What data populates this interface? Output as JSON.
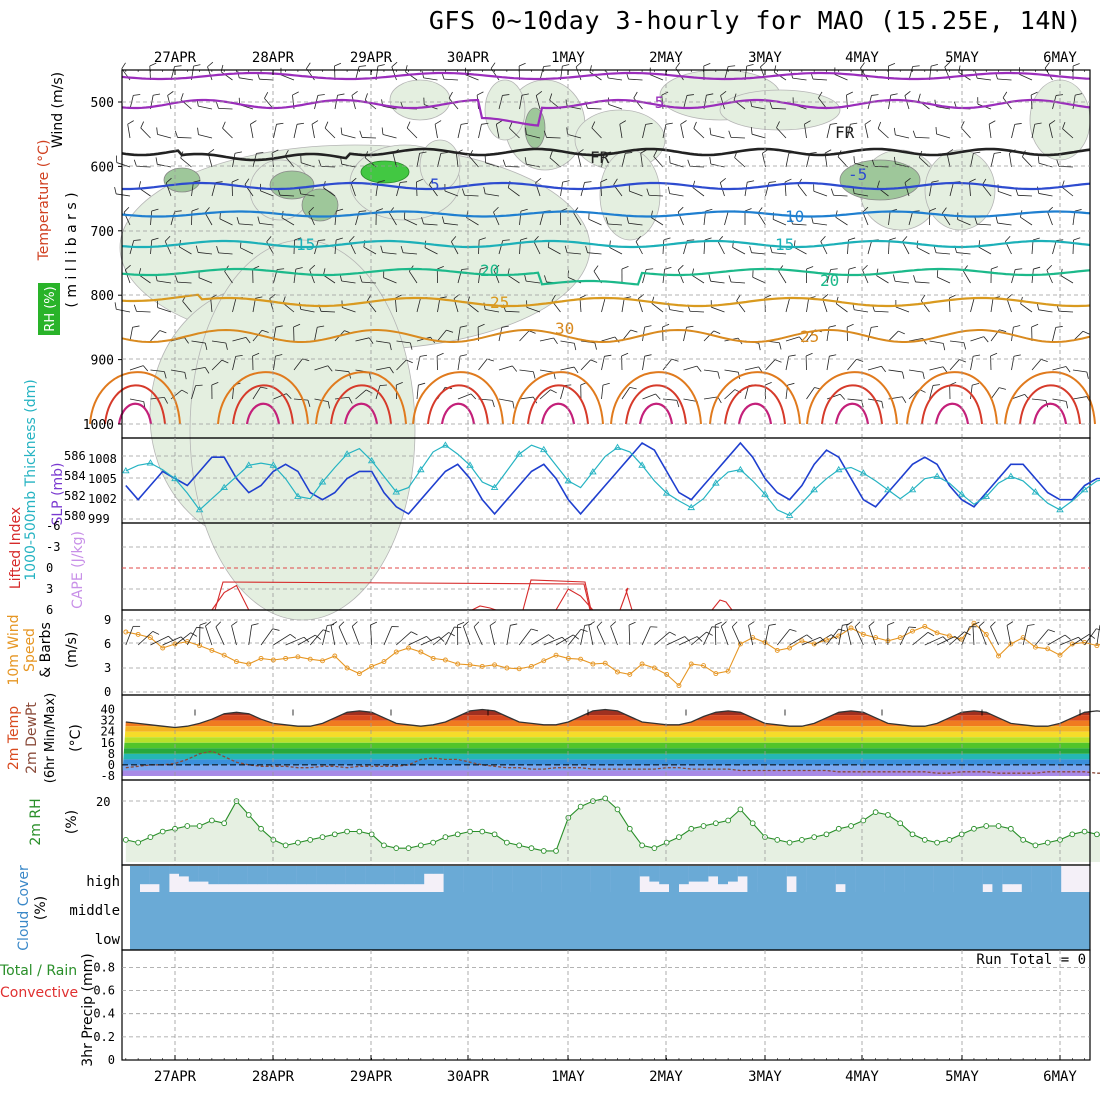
{
  "title": "GFS 0~10day 3-hourly for MAO (15.25E, 14N)",
  "dates": [
    "27APR",
    "28APR",
    "29APR",
    "30APR",
    "1MAY",
    "2MAY",
    "3MAY",
    "4MAY",
    "5MAY",
    "6MAY"
  ],
  "colors": {
    "grid": "#9a9a9a",
    "temp_line": "#2f2f2f",
    "slp": "#1f3fcf",
    "thick": "#25b3c2",
    "wind": "#e69623",
    "li": "#d62a2a",
    "rh": "#2a8f2a",
    "rh_fill": "#e6f0e2",
    "cloud": "#6aaad6",
    "cloud_bg": "#f4f0f8"
  },
  "panels": {
    "upper": {
      "ylabel": "(millibars)",
      "labels": [
        {
          "text": "Wind (m/s)",
          "color": "#000000"
        },
        {
          "text": "Temperature (°C)",
          "color": "#d04020"
        },
        {
          "text": "RH (%)",
          "color": "#ffffff",
          "bg": "#29b329"
        }
      ],
      "ticks": [
        "500",
        "600",
        "700",
        "800",
        "900",
        "1000"
      ],
      "contour_labels": [
        "5",
        "-5",
        "FR",
        "FR",
        "5",
        "-5",
        "10",
        "15",
        "15",
        "20",
        "20",
        "25",
        "25",
        "30",
        "30",
        "30",
        "30",
        "30",
        "10"
      ]
    },
    "slp": {
      "left_label": "1000-500mb Thickness (dm)",
      "right_label": "SLP (mb)",
      "left_ticks": [
        "586",
        "584",
        "582",
        "580"
      ],
      "right_ticks": [
        "1008",
        "1005",
        "1002",
        "999"
      ]
    },
    "li": {
      "left_label": "Lifted Index",
      "right_label": "CAPE (J/kg)",
      "ticks": [
        "-6",
        "-3",
        "0",
        "3",
        "6"
      ]
    },
    "wind": {
      "left_label": "10m Wind Speed & Barbs",
      "right_label": "(m/s)",
      "ticks": [
        "9",
        "6",
        "3",
        "0"
      ]
    },
    "temp": {
      "left_label": "2m Temp 2m DewPt (6hr Min/Max)",
      "right_label": "(°C)",
      "ticks": [
        "40",
        "32",
        "24",
        "16",
        "8",
        "0",
        "-8"
      ]
    },
    "rh": {
      "left_label": "2m RH",
      "right_label": "(%)",
      "ticks": [
        "20"
      ]
    },
    "cloud": {
      "left_label": "Cloud Cover",
      "right_label": "(%)",
      "levels": [
        "high",
        "middle",
        "low"
      ]
    },
    "precip": {
      "left_label": "Total / Rain",
      "left_label2": "Convective",
      "right_label": "3hr Precip (mm)",
      "ticks": [
        "0.8",
        "0.6",
        "0.4",
        "0.2",
        "0"
      ],
      "note": "Run Total = 0"
    }
  },
  "chart_data": [
    {
      "type": "line",
      "name": "SLP",
      "x_unit": "3-hourly from 26APR 12Z",
      "series": [
        {
          "name": "SLP (mb)",
          "values": [
            1004,
            1002,
            1004,
            1006,
            1005,
            1004,
            1006,
            1008,
            1008,
            1005,
            1003,
            1004,
            1006,
            1007,
            1006,
            1003,
            1002,
            1003,
            1005,
            1006,
            1006,
            1003,
            1001,
            1000,
            1002,
            1004,
            1006,
            1007,
            1005,
            1002,
            1000,
            1002,
            1004,
            1006,
            1007,
            1005,
            1002,
            1000,
            1002,
            1004,
            1006,
            1008,
            1010,
            1009,
            1006,
            1003,
            1002,
            1004,
            1006,
            1008,
            1010,
            1008,
            1005,
            1003,
            1002,
            1004,
            1007,
            1009,
            1008,
            1005,
            1002,
            1001,
            1003,
            1005,
            1007,
            1008,
            1007,
            1004,
            1002,
            1001,
            1003,
            1005,
            1007,
            1007,
            1005,
            1003,
            1002,
            1002,
            1004,
            1005,
            1005,
            1004,
            1003,
            1002,
            1002,
            1004,
            1005,
            1005,
            1004,
            1003,
            1002,
            1003,
            1005
          ]
        },
        {
          "name": "Thickness (dm)",
          "values": [
            584.5,
            585.0,
            585.2,
            584.6,
            583.8,
            582.5,
            581.0,
            582.0,
            583.0,
            584.0,
            585.0,
            585.2,
            585.0,
            583.8,
            582.2,
            582.0,
            583.5,
            584.8,
            586.0,
            586.5,
            585.4,
            584.0,
            582.6,
            583.0,
            584.6,
            586.2,
            586.8,
            586.0,
            585.0,
            583.5,
            583.0,
            584.5,
            586.0,
            586.8,
            586.4,
            585.0,
            583.6,
            583.0,
            584.4,
            585.8,
            586.6,
            586.2,
            585.0,
            583.6,
            582.5,
            581.8,
            581.2,
            582.0,
            583.4,
            584.4,
            584.6,
            583.6,
            582.4,
            581.0,
            580.5,
            581.6,
            582.8,
            583.8,
            584.6,
            584.8,
            584.3,
            583.6,
            582.8,
            582.0,
            582.8,
            583.8,
            584.0,
            583.4,
            582.4,
            581.5,
            582.2,
            583.4,
            584.0,
            583.6,
            582.6,
            581.6,
            581.0,
            581.8,
            582.8,
            583.6,
            583.8,
            583.4,
            582.6,
            581.4,
            580.6,
            580.2,
            581.8,
            583.0,
            584.0,
            584.6,
            583.2,
            582.0,
            582.4
          ]
        }
      ],
      "ylim_left": [
        580,
        587
      ],
      "ylim_right": [
        999,
        1010
      ]
    },
    {
      "type": "line",
      "name": "Lifted Index",
      "values": [
        null,
        null,
        null,
        null,
        null,
        null,
        null,
        6,
        3.5,
        2.5,
        6,
        null,
        null,
        null,
        null,
        null,
        null,
        null,
        null,
        null,
        null,
        null,
        null,
        null,
        null,
        null,
        null,
        null,
        null,
        null,
        null,
        null,
        null,
        null,
        null,
        6,
        3,
        4,
        6,
        null,
        null,
        null,
        null,
        null,
        null,
        null,
        null,
        null,
        null,
        null,
        null,
        null,
        null,
        null,
        null,
        null,
        null,
        null,
        null,
        null,
        null,
        null,
        null,
        null,
        null,
        null,
        null,
        null,
        null,
        null,
        null,
        null,
        null,
        null,
        null,
        null,
        null,
        null,
        null,
        null,
        null,
        null,
        null,
        null,
        null,
        null,
        null,
        null,
        null,
        null,
        null,
        null,
        null
      ],
      "ylim": [
        6,
        -6
      ]
    },
    {
      "type": "line",
      "name": "10m Wind Speed",
      "values": [
        7.5,
        7.2,
        6.8,
        5.5,
        6.0,
        6.3,
        5.8,
        5.2,
        4.6,
        3.8,
        3.5,
        4.2,
        4.0,
        4.2,
        4.4,
        4.1,
        3.9,
        4.5,
        3.0,
        2.3,
        3.2,
        3.8,
        5.0,
        5.5,
        5.0,
        4.2,
        4.0,
        3.5,
        3.4,
        3.2,
        3.4,
        3.0,
        2.9,
        3.2,
        3.9,
        4.6,
        4.2,
        4.1,
        3.5,
        3.6,
        2.5,
        2.2,
        3.5,
        3.0,
        2.2,
        0.8,
        3.5,
        3.3,
        2.3,
        2.6,
        6.0,
        6.8,
        6.2,
        5.2,
        5.5,
        6.4,
        6.0,
        6.5,
        7.0,
        8.0,
        7.2,
        6.8,
        6.4,
        6.8,
        7.6,
        8.2,
        7.4,
        7.0,
        6.6,
        8.6,
        7.2,
        4.5,
        6.0,
        6.8,
        5.6,
        5.4,
        4.6,
        6.0,
        6.2,
        5.8,
        6.4,
        6.8,
        5.2,
        5.4,
        4.6,
        5.4,
        3.0,
        2.6,
        3.5,
        2.8,
        3.2,
        4.4,
        5.9,
        6.5,
        6.0
      ]
    },
    {
      "type": "area",
      "name": "2m Temp",
      "values": [
        31,
        30,
        29,
        28,
        27,
        28,
        30,
        33,
        37,
        38,
        37,
        33,
        30,
        29,
        28,
        28,
        30,
        34,
        38,
        39,
        38,
        34,
        30,
        29,
        28,
        29,
        31,
        35,
        39,
        40,
        39,
        35,
        31,
        30,
        29,
        29,
        31,
        35,
        39,
        40,
        39,
        35,
        31,
        30,
        29,
        29,
        31,
        35,
        38,
        39,
        38,
        34,
        30,
        29,
        28,
        28,
        30,
        34,
        38,
        39,
        38,
        34,
        30,
        29,
        28,
        28,
        30,
        34,
        38,
        39,
        38,
        34,
        30,
        29,
        28,
        28,
        30,
        34,
        38,
        39,
        38,
        34,
        30,
        29,
        28,
        28,
        30,
        34,
        38,
        39,
        38,
        34,
        30,
        29,
        28
      ],
      "dewpoint": [
        -2,
        -1,
        0,
        0,
        1,
        4,
        8,
        10,
        6,
        2,
        0,
        -1,
        -1,
        -1,
        -2,
        -2,
        -1,
        -1,
        -2,
        -1,
        -1,
        -1,
        -1,
        0,
        4,
        5,
        4,
        4,
        2,
        0,
        -1,
        -2,
        -2,
        -3,
        -3,
        -2,
        -2,
        -2,
        -3,
        -3,
        -3,
        -3,
        -3,
        -3,
        -2,
        -2,
        -3,
        -3,
        -3,
        -3,
        -4,
        -4,
        -4,
        -4,
        -4,
        -4,
        -4,
        -4,
        -5,
        -5,
        -5,
        -5,
        -5,
        -5,
        -5,
        -5,
        -6,
        -6,
        -5,
        -5,
        -5,
        -6,
        -6,
        -6,
        -6,
        -5,
        -5,
        -5,
        -5,
        -6,
        -6,
        -6,
        -5,
        -5,
        -5,
        -5,
        -5,
        -5,
        -5,
        -5,
        -5,
        -5,
        -5,
        -5,
        -5
      ],
      "ylim": [
        -8,
        44
      ]
    },
    {
      "type": "area",
      "name": "2m RH",
      "values": [
        8,
        7,
        9,
        11,
        12,
        13,
        13,
        15,
        14,
        22,
        17,
        12,
        8,
        6,
        7,
        8,
        9,
        10,
        11,
        11,
        10,
        6,
        5,
        5,
        6,
        7,
        9,
        10,
        11,
        11,
        10,
        7,
        6,
        5,
        4,
        4,
        16,
        20,
        22,
        23,
        19,
        12,
        6,
        5,
        7,
        9,
        12,
        13,
        14,
        15,
        19,
        14,
        9,
        8,
        7,
        8,
        9,
        10,
        12,
        13,
        15,
        18,
        17,
        14,
        10,
        8,
        7,
        8,
        10,
        12,
        13,
        13,
        12,
        8,
        6,
        7,
        8,
        10,
        11,
        10,
        9,
        7,
        6,
        7,
        8,
        9,
        10,
        10,
        8,
        6,
        5,
        6,
        8,
        9,
        10,
        12,
        8
      ],
      "ylim": [
        0,
        26
      ]
    },
    {
      "type": "bar",
      "name": "Cloud Cover",
      "high": [
        100,
        70,
        70,
        100,
        30,
        40,
        60,
        60,
        70,
        70,
        70,
        70,
        70,
        70,
        70,
        70,
        70,
        70,
        70,
        70,
        70,
        70,
        70,
        70,
        70,
        70,
        70,
        70,
        70,
        70,
        30,
        30,
        100,
        100,
        100,
        100,
        100,
        100,
        100,
        100,
        100,
        100,
        100,
        100,
        100,
        100,
        100,
        100,
        100,
        100,
        100,
        100,
        40,
        60,
        70,
        100,
        70,
        60,
        60,
        40,
        70,
        60,
        40,
        100,
        100,
        100,
        100,
        40,
        100,
        100,
        100,
        100,
        70,
        100,
        100,
        100,
        100,
        100,
        100,
        100,
        100,
        100,
        100,
        100,
        100,
        100,
        100,
        70,
        100,
        70,
        70,
        100,
        100,
        100,
        100
      ],
      "mid": 100,
      "low": 100
    },
    {
      "type": "bar",
      "name": "3hr Precip",
      "values": [
        0,
        0,
        0,
        0,
        0,
        0,
        0,
        0,
        0,
        0,
        0,
        0,
        0,
        0,
        0,
        0,
        0,
        0,
        0,
        0,
        0,
        0,
        0,
        0,
        0,
        0,
        0,
        0,
        0,
        0,
        0,
        0,
        0,
        0,
        0,
        0,
        0,
        0,
        0,
        0,
        0,
        0,
        0,
        0,
        0,
        0,
        0,
        0,
        0,
        0,
        0,
        0,
        0,
        0,
        0,
        0,
        0,
        0,
        0,
        0,
        0,
        0,
        0,
        0,
        0,
        0,
        0,
        0,
        0,
        0,
        0,
        0,
        0,
        0,
        0,
        0,
        0,
        0,
        0,
        0,
        0,
        0,
        0,
        0,
        0,
        0,
        0,
        0,
        0,
        0,
        0,
        0,
        0,
        0,
        0
      ],
      "ylim": [
        0,
        0.9
      ]
    }
  ]
}
